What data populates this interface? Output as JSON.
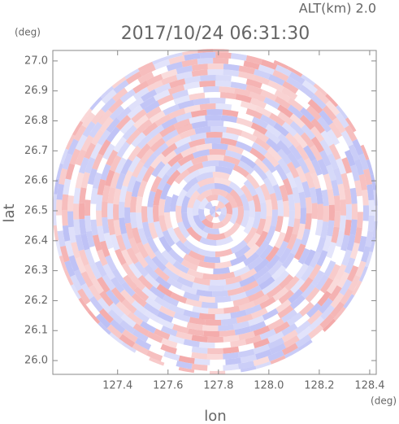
{
  "chart_data": {
    "type": "radar-ppi",
    "title": "2017/10/24 06:31:30",
    "subtitle": "ALT(km) 2.0",
    "x_label": "lon",
    "y_label": "lat",
    "x_unit": "(deg)",
    "y_unit": "(deg)",
    "xlim": [
      127.143,
      128.426
    ],
    "ylim": [
      25.954,
      27.035
    ],
    "xticks": [
      127.4,
      127.6,
      127.8,
      {
        "value": 128.0,
        "label": "128.0"
      },
      128.2,
      128.4
    ],
    "yticks": [
      {
        "value": 26.0,
        "label": "26.0"
      },
      26.1,
      26.2,
      26.3,
      26.4,
      26.5,
      26.6,
      26.7,
      26.8,
      26.9,
      {
        "value": 27.0,
        "label": "27.0"
      }
    ]
  }
}
